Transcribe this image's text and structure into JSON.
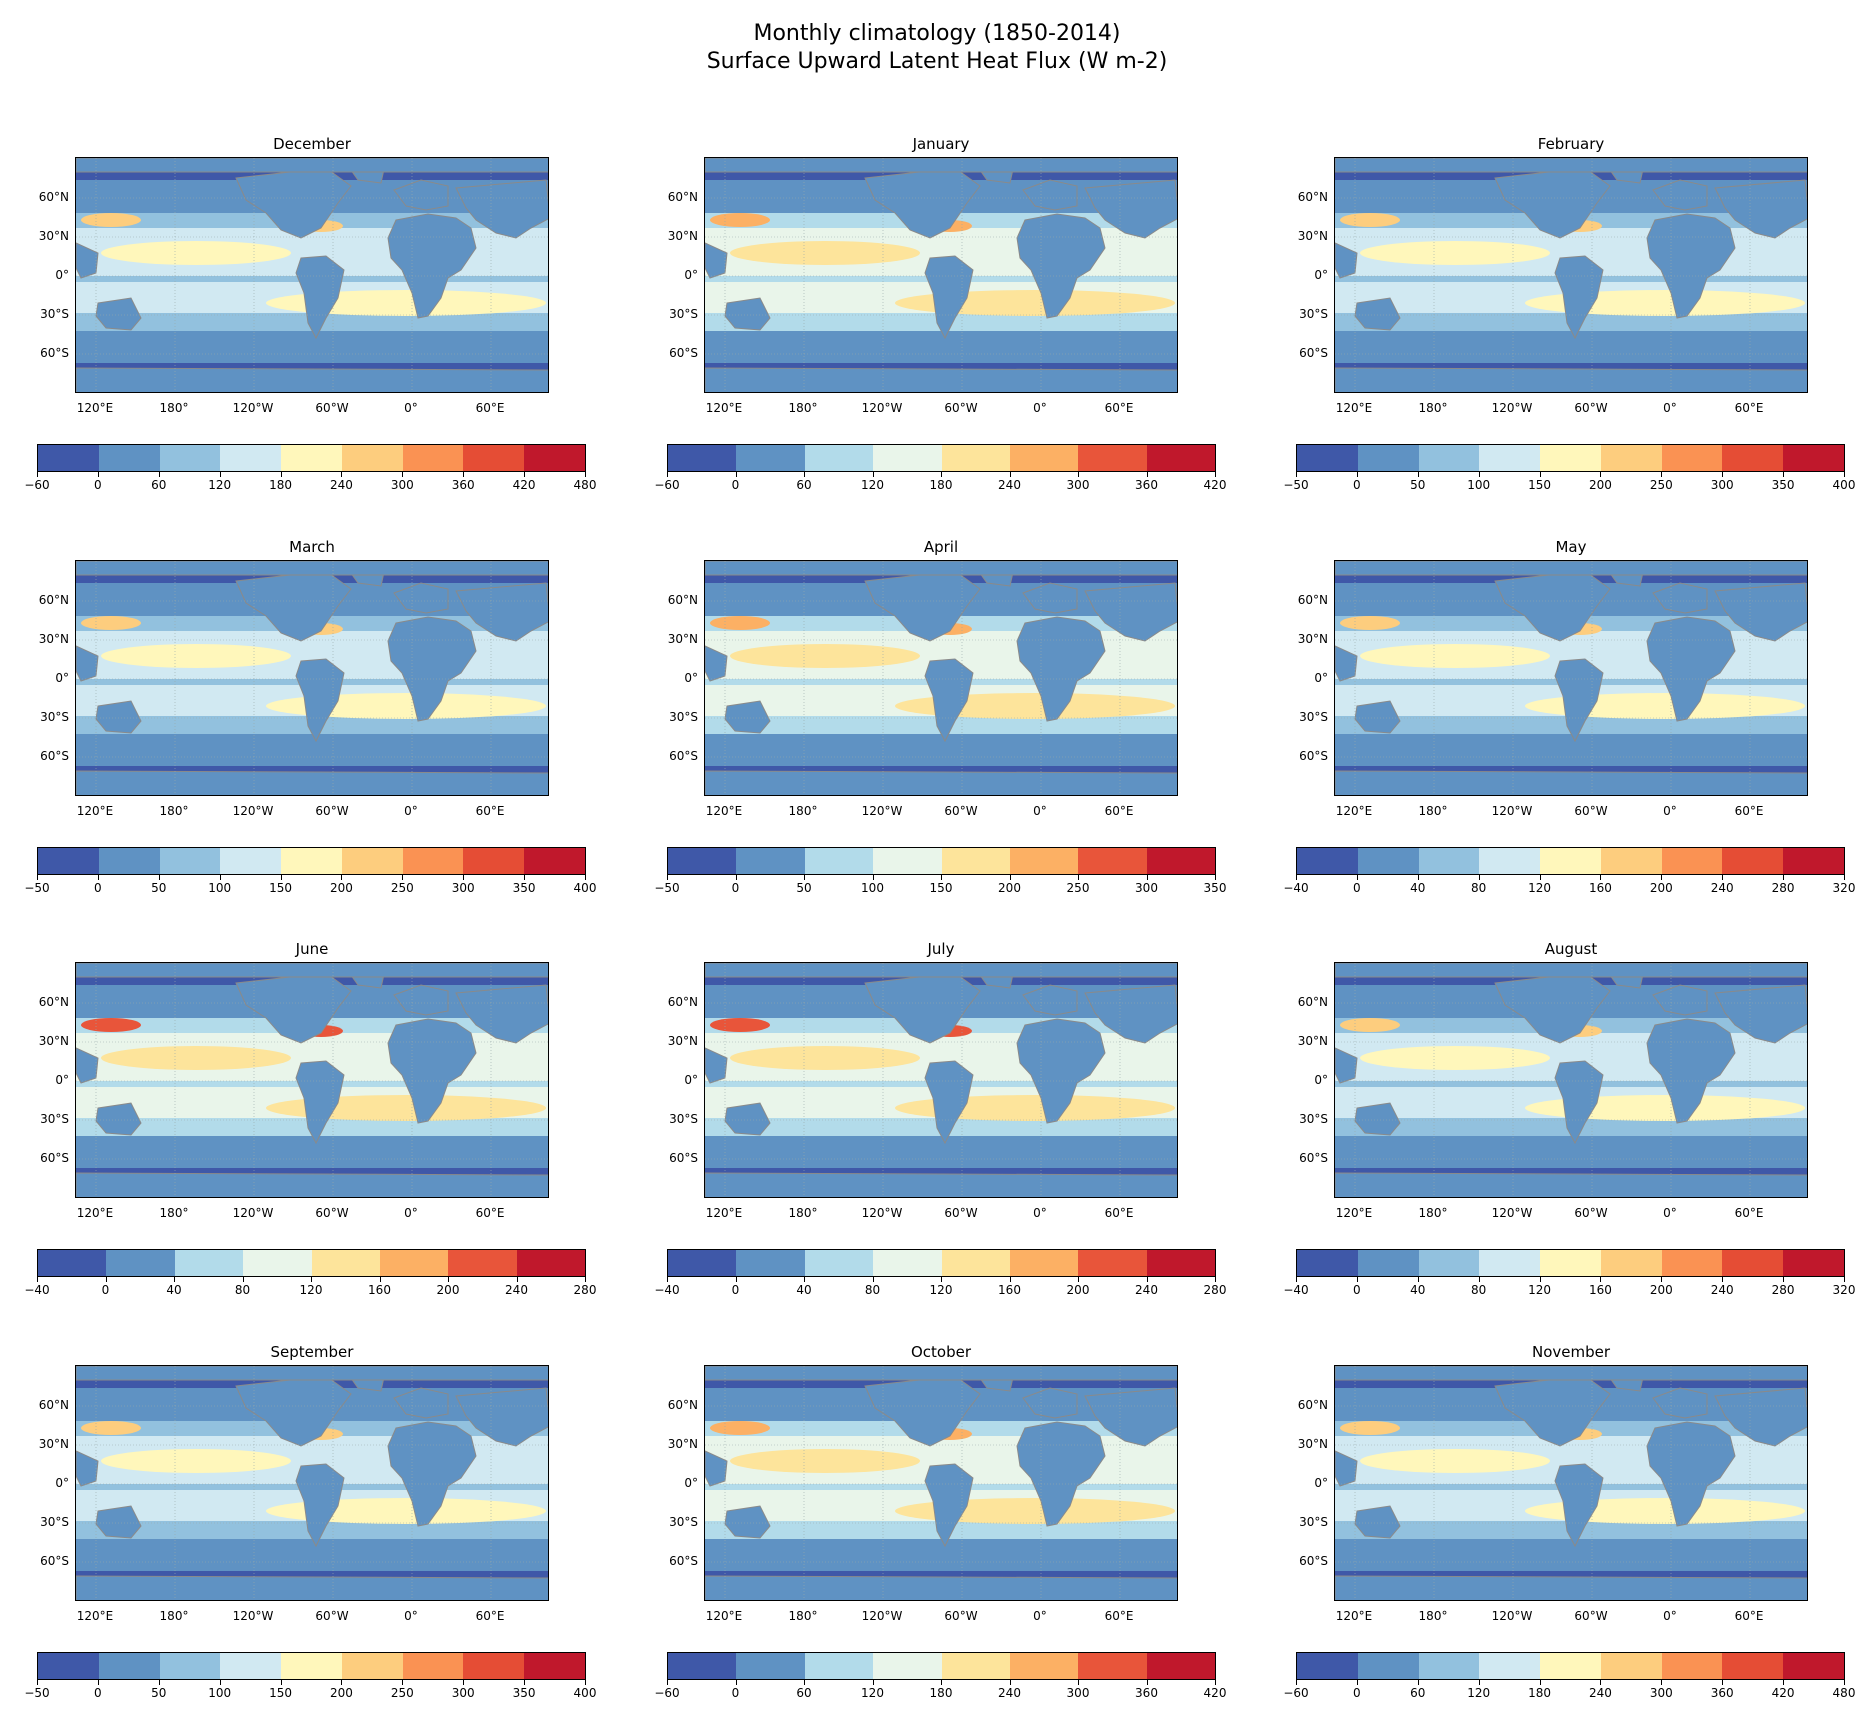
{
  "title_line1": "Monthly climatology (1850-2014)",
  "title_line2": "Surface Upward Latent Heat Flux (W m-2)",
  "lat_labels": [
    "60°N",
    "30°N",
    "0°",
    "30°S",
    "60°S"
  ],
  "lon_labels": [
    "120°E",
    "180°",
    "120°W",
    "60°W",
    "0°",
    "60°E"
  ],
  "colors": {
    "scale_9": [
      "#3f58a8",
      "#5f92c3",
      "#92c1de",
      "#d1e9f2",
      "#fff7bb",
      "#fdcd7e",
      "#fa9253",
      "#e54d35",
      "#c0182c"
    ],
    "scale_8": [
      "#3f58a8",
      "#5f92c3",
      "#b2dbea",
      "#e9f5ea",
      "#fde49b",
      "#fcb064",
      "#e8553a",
      "#c0182c"
    ],
    "land": "#5f92c3",
    "coast": "#8a8a8a"
  },
  "chart_data": [
    {
      "type": "heatmap",
      "month": "December",
      "colorbar_ticks": [
        "−60",
        "0",
        "60",
        "120",
        "180",
        "240",
        "300",
        "360",
        "420",
        "480"
      ]
    },
    {
      "type": "heatmap",
      "month": "January",
      "colorbar_ticks": [
        "−60",
        "0",
        "60",
        "120",
        "180",
        "240",
        "300",
        "360",
        "420"
      ]
    },
    {
      "type": "heatmap",
      "month": "February",
      "colorbar_ticks": [
        "−50",
        "0",
        "50",
        "100",
        "150",
        "200",
        "250",
        "300",
        "350",
        "400"
      ]
    },
    {
      "type": "heatmap",
      "month": "March",
      "colorbar_ticks": [
        "−50",
        "0",
        "50",
        "100",
        "150",
        "200",
        "250",
        "300",
        "350",
        "400"
      ]
    },
    {
      "type": "heatmap",
      "month": "April",
      "colorbar_ticks": [
        "−50",
        "0",
        "50",
        "100",
        "150",
        "200",
        "250",
        "300",
        "350"
      ]
    },
    {
      "type": "heatmap",
      "month": "May",
      "colorbar_ticks": [
        "−40",
        "0",
        "40",
        "80",
        "120",
        "160",
        "200",
        "240",
        "280",
        "320"
      ]
    },
    {
      "type": "heatmap",
      "month": "June",
      "colorbar_ticks": [
        "−40",
        "0",
        "40",
        "80",
        "120",
        "160",
        "200",
        "240",
        "280"
      ]
    },
    {
      "type": "heatmap",
      "month": "July",
      "colorbar_ticks": [
        "−40",
        "0",
        "40",
        "80",
        "120",
        "160",
        "200",
        "240",
        "280"
      ]
    },
    {
      "type": "heatmap",
      "month": "August",
      "colorbar_ticks": [
        "−40",
        "0",
        "40",
        "80",
        "120",
        "160",
        "200",
        "240",
        "280",
        "320"
      ]
    },
    {
      "type": "heatmap",
      "month": "September",
      "colorbar_ticks": [
        "−50",
        "0",
        "50",
        "100",
        "150",
        "200",
        "250",
        "300",
        "350",
        "400"
      ]
    },
    {
      "type": "heatmap",
      "month": "October",
      "colorbar_ticks": [
        "−60",
        "0",
        "60",
        "120",
        "180",
        "240",
        "300",
        "360",
        "420"
      ]
    },
    {
      "type": "heatmap",
      "month": "November",
      "colorbar_ticks": [
        "−60",
        "0",
        "60",
        "120",
        "180",
        "240",
        "300",
        "360",
        "420",
        "480"
      ]
    }
  ]
}
